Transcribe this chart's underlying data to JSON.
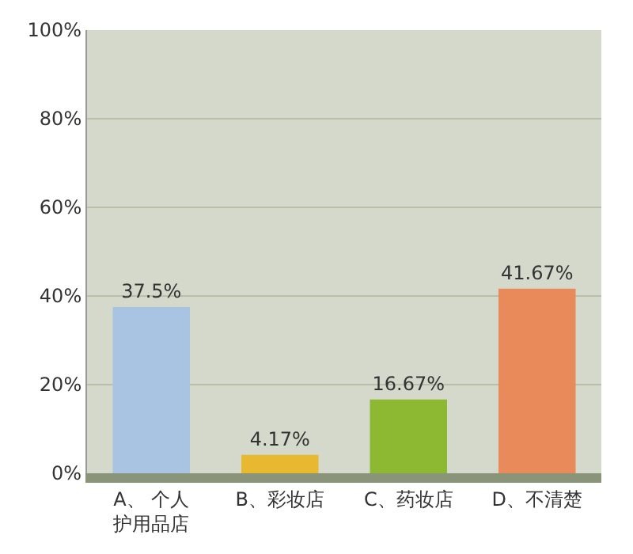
{
  "chart_data": {
    "type": "bar",
    "categories": [
      "A、 个人护用品店",
      "B、彩妆店",
      "C、药妆店",
      "D、不清楚"
    ],
    "values": [
      37.5,
      4.17,
      16.67,
      41.67
    ],
    "value_labels": [
      "37.5%",
      "4.17%",
      "16.67%",
      "41.67%"
    ],
    "colors": [
      "#a8c4e2",
      "#e8b830",
      "#8cb832",
      "#e88a5a"
    ],
    "ylim": [
      0,
      100
    ],
    "yticks": [
      {
        "value": 0,
        "label": "0%"
      },
      {
        "value": 20,
        "label": "20%"
      },
      {
        "value": 40,
        "label": "40%"
      },
      {
        "value": 60,
        "label": "60%"
      },
      {
        "value": 80,
        "label": "80%"
      },
      {
        "value": 100,
        "label": "100%"
      }
    ],
    "grid": "y"
  }
}
